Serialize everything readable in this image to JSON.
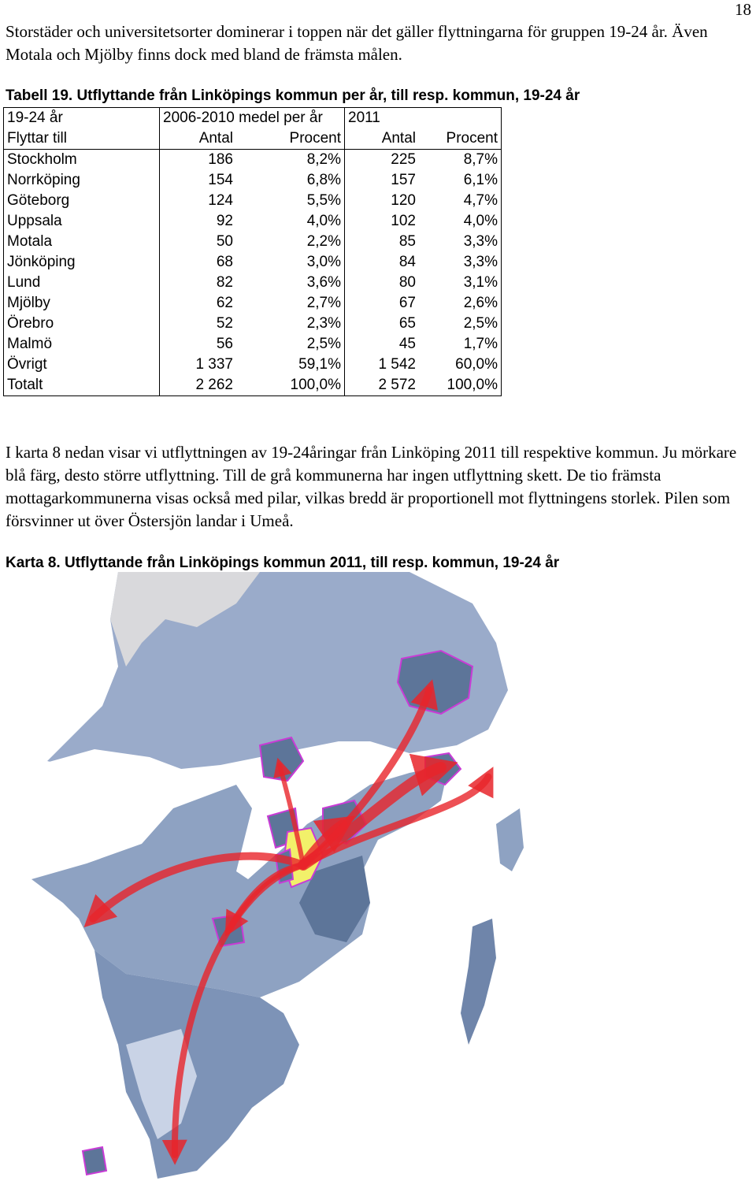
{
  "page_number": "18",
  "intro_text": "Storstäder och universitetsorter dominerar i toppen när det gäller flyttningarna för gruppen 19-24 år. Även Motala och Mjölby finns dock med bland de främsta målen.",
  "table": {
    "caption": "Tabell 19. Utflyttande från Linköpings kommun per år, till resp. kommun, 19-24 år",
    "header_row1": [
      "19-24 år",
      "2006-2010 medel per år",
      "2011"
    ],
    "header_row2": [
      "Flyttar till",
      "Antal",
      "Procent",
      "Antal",
      "Procent"
    ],
    "rows": [
      [
        "Stockholm",
        "186",
        "8,2%",
        "225",
        "8,7%"
      ],
      [
        "Norrköping",
        "154",
        "6,8%",
        "157",
        "6,1%"
      ],
      [
        "Göteborg",
        "124",
        "5,5%",
        "120",
        "4,7%"
      ],
      [
        "Uppsala",
        "92",
        "4,0%",
        "102",
        "4,0%"
      ],
      [
        "Motala",
        "50",
        "2,2%",
        "85",
        "3,3%"
      ],
      [
        "Jönköping",
        "68",
        "3,0%",
        "84",
        "3,3%"
      ],
      [
        "Lund",
        "82",
        "3,6%",
        "80",
        "3,1%"
      ],
      [
        "Mjölby",
        "62",
        "2,7%",
        "67",
        "2,6%"
      ],
      [
        "Örebro",
        "52",
        "2,3%",
        "65",
        "2,5%"
      ],
      [
        "Malmö",
        "56",
        "2,5%",
        "45",
        "1,7%"
      ],
      [
        "Övrigt",
        "1 337",
        "59,1%",
        "1 542",
        "60,0%"
      ],
      [
        "Totalt",
        "2 262",
        "100,0%",
        "2 572",
        "100,0%"
      ]
    ]
  },
  "map_text": "I karta 8 nedan visar vi utflyttningen av 19-24åringar från Linköping 2011 till respektive kommun. Ju mörkare blå färg, desto större utflyttning. Till de grå kommunerna har ingen utflyttning skett. De tio främsta mottagarkommunerna visas också med pilar, vilkas bredd är proportionell mot flyttningens storlek. Pilen som försvinner ut över Östersjön landar i Umeå.",
  "map_caption": "Karta 8. Utflyttande från Linköpings kommun 2011, till resp. kommun, 19-24 år",
  "colors": {
    "no_migration": "#d9d9dc",
    "light_blue": "#c9d3e6",
    "mid_blue": "#8ea2c2",
    "dark_blue": "#5d7599",
    "origin_highlight": "#f2f06a",
    "arrow": "#e8242a",
    "top_border": "#c93bd6"
  }
}
